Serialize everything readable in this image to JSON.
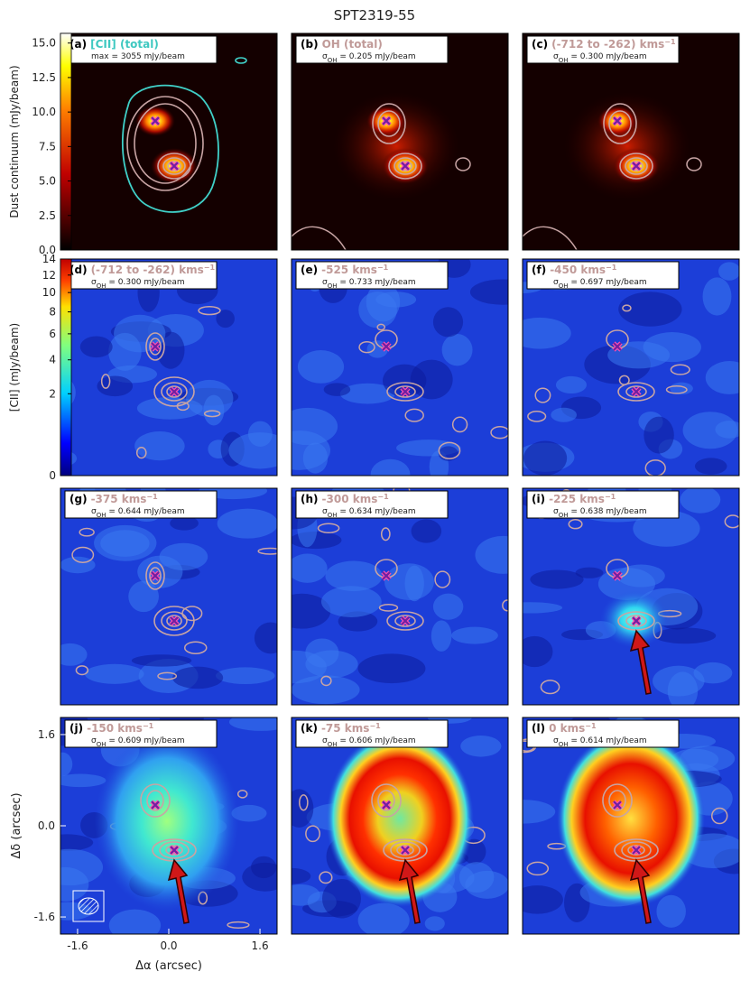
{
  "title": "SPT2319-55",
  "colorbars": [
    {
      "label": "Dust continuum (mJy/beam)",
      "lim": [
        0,
        15.7
      ],
      "ticks": [
        {
          "value": 0,
          "label": "0.0"
        },
        2.5,
        {
          "value": 5,
          "label": "5.0"
        },
        7.5,
        {
          "value": 10,
          "label": "10.0"
        },
        12.5,
        {
          "value": 15,
          "label": "15.0"
        }
      ]
    },
    {
      "label": "[CII] (mJy/beam)",
      "scale": "sqrt",
      "lim": [
        0,
        14
      ],
      "ticks": [
        0,
        2,
        4,
        6,
        8,
        10,
        12,
        14
      ]
    }
  ],
  "axes": {
    "xlabel": "Δα (arcsec)",
    "ylabel": "Δδ (arcsec)",
    "xlim": [
      -1.9,
      1.9
    ],
    "ylim": [
      -1.9,
      1.9
    ],
    "xticks": [
      -1.6,
      {
        "value": 0,
        "label": "0.0"
      },
      1.6
    ],
    "yticks": [
      -1.6,
      {
        "value": 0,
        "label": "0.0"
      },
      1.6
    ]
  },
  "panels": [
    {
      "label": "(a)",
      "title": "[CII] (total)",
      "title_color": "#3ec8c0",
      "note": {
        "text": "max = 3055 mJy/beam"
      }
    },
    {
      "label": "(b)",
      "title": "OH (total)",
      "note": {
        "symbol": "σ",
        "sub": "OH",
        "text": " = 0.205 mJy/beam"
      }
    },
    {
      "label": "(c)",
      "title": "(-712 to -262) kms",
      "sup": "−1",
      "note": {
        "symbol": "σ",
        "sub": "OH",
        "text": " = 0.300 mJy/beam"
      }
    },
    {
      "label": "(d)",
      "title": "(-712 to -262) kms",
      "sup": "−1",
      "note": {
        "symbol": "σ",
        "sub": "OH",
        "text": " = 0.300 mJy/beam"
      }
    },
    {
      "label": "(e)",
      "title": "-525 kms",
      "sup": "−1",
      "note": {
        "symbol": "σ",
        "sub": "OH",
        "text": " = 0.733 mJy/beam"
      }
    },
    {
      "label": "(f)",
      "title": "-450 kms",
      "sup": "−1",
      "note": {
        "symbol": "σ",
        "sub": "OH",
        "text": " = 0.697 mJy/beam"
      }
    },
    {
      "label": "(g)",
      "title": "-375 kms",
      "sup": "−1",
      "note": {
        "symbol": "σ",
        "sub": "OH",
        "text": " = 0.644 mJy/beam"
      }
    },
    {
      "label": "(h)",
      "title": "-300 kms",
      "sup": "−1",
      "note": {
        "symbol": "σ",
        "sub": "OH",
        "text": " = 0.634 mJy/beam"
      }
    },
    {
      "label": "(i)",
      "title": "-225 kms",
      "sup": "−1",
      "note": {
        "symbol": "σ",
        "sub": "OH",
        "text": " = 0.638 mJy/beam"
      }
    },
    {
      "label": "(j)",
      "title": "-150 kms",
      "sup": "−1",
      "note": {
        "symbol": "σ",
        "sub": "OH",
        "text": " = 0.609 mJy/beam"
      }
    },
    {
      "label": "(k)",
      "title": "-75 kms",
      "sup": "−1",
      "note": {
        "symbol": "σ",
        "sub": "OH",
        "text": " = 0.606 mJy/beam"
      }
    },
    {
      "label": "(l)",
      "title": "0 kms",
      "sup": "−1",
      "note": {
        "symbol": "σ",
        "sub": "OH",
        "text": " = 0.614 mJy/beam"
      }
    }
  ]
}
